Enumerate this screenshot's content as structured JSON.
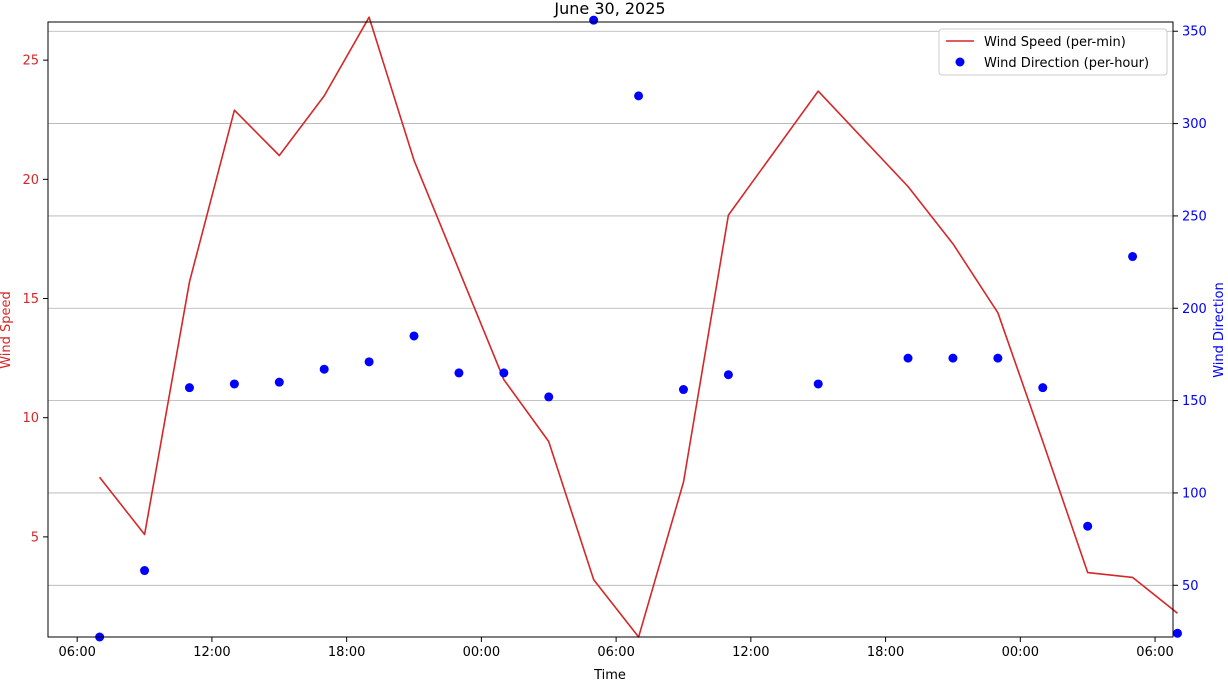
{
  "chart_data": {
    "type": "line",
    "title": "June 30, 2025",
    "xlabel": "Time",
    "ylabel_left": "Wind Speed",
    "ylabel_right": "Wind Direction",
    "x_unit": "hours",
    "x_range": [
      -1.3,
      48.8
    ],
    "x_ticks": [
      {
        "value": 0,
        "label": "06:00"
      },
      {
        "value": 6,
        "label": "12:00"
      },
      {
        "value": 12,
        "label": "18:00"
      },
      {
        "value": 18,
        "label": "00:00"
      },
      {
        "value": 24,
        "label": "06:00"
      },
      {
        "value": 30,
        "label": "12:00"
      },
      {
        "value": 36,
        "label": "18:00"
      },
      {
        "value": 42,
        "label": "00:00"
      },
      {
        "value": 48,
        "label": "06:00"
      }
    ],
    "y_left": {
      "range": [
        0.8,
        26.6
      ],
      "ticks": [
        5,
        10,
        15,
        20,
        25
      ],
      "color": "#d62728"
    },
    "y_right": {
      "range": [
        22,
        355
      ],
      "ticks": [
        50,
        100,
        150,
        200,
        250,
        300,
        350
      ],
      "color": "#0000ff"
    },
    "grid": "horizontal (right axis)",
    "legend_position": "top-right",
    "series": [
      {
        "name": "Wind Speed (per-min)",
        "kind": "line",
        "axis": "left",
        "color": "#d62728",
        "x": [
          1,
          3,
          5,
          7,
          9,
          11,
          13,
          15,
          17,
          19,
          21,
          23,
          25,
          27,
          29,
          31,
          33,
          35,
          37,
          39,
          41,
          43,
          45,
          47,
          49
        ],
        "y": [
          7.5,
          5.1,
          15.7,
          22.9,
          21.0,
          23.5,
          26.8,
          20.8,
          16.2,
          11.6,
          9.0,
          3.2,
          0.8,
          7.3,
          18.5,
          21.1,
          23.7,
          21.7,
          19.7,
          17.3,
          14.4,
          9.0,
          3.5,
          3.3,
          1.8
        ]
      },
      {
        "name": "Wind Direction (per-hour)",
        "kind": "scatter",
        "axis": "right",
        "color": "#0000ff",
        "x": [
          1,
          3,
          5,
          7,
          9,
          11,
          13,
          15,
          17,
          19,
          21,
          23,
          25,
          27,
          29,
          33,
          37,
          39,
          41,
          43,
          45,
          47,
          49
        ],
        "y": [
          22,
          58,
          157,
          159,
          160,
          167,
          171,
          185,
          165,
          165,
          152,
          356,
          315,
          156,
          164,
          159,
          173,
          173,
          173,
          157,
          82,
          228,
          24
        ]
      }
    ]
  }
}
